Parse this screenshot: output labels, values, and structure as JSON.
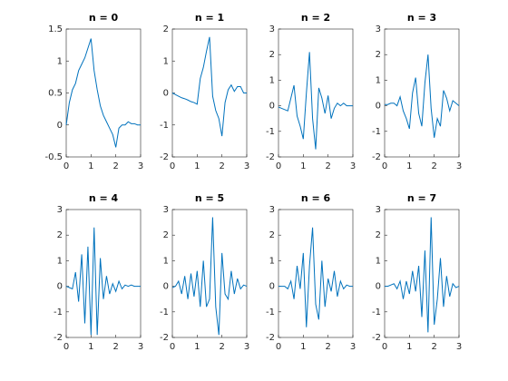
{
  "chart_data": [
    {
      "type": "line",
      "title": "n = 0",
      "color": "#0072bd",
      "xlim": [
        0,
        3
      ],
      "ylim": [
        -0.5,
        1.5
      ],
      "xticks": [
        0,
        1,
        2,
        3
      ],
      "yticks": [
        -0.5,
        0,
        0.5,
        1,
        1.5
      ],
      "x": [
        0,
        0.125,
        0.25,
        0.375,
        0.5,
        0.625,
        0.75,
        0.875,
        1,
        1.125,
        1.25,
        1.375,
        1.5,
        1.625,
        1.75,
        1.875,
        2,
        2.125,
        2.25,
        2.375,
        2.5,
        2.625,
        2.75,
        2.875,
        3
      ],
      "values": [
        0,
        0.35,
        0.55,
        0.65,
        0.85,
        0.95,
        1.05,
        1.2,
        1.35,
        0.85,
        0.55,
        0.3,
        0.15,
        0.05,
        -0.05,
        -0.15,
        -0.35,
        -0.05,
        0,
        0,
        0.05,
        0.02,
        0.02,
        0,
        0
      ]
    },
    {
      "type": "line",
      "title": "n = 1",
      "color": "#0072bd",
      "xlim": [
        0,
        3
      ],
      "ylim": [
        -2,
        2
      ],
      "xticks": [
        0,
        1,
        2,
        3
      ],
      "yticks": [
        -2,
        -1,
        0,
        1,
        2
      ],
      "x": [
        0,
        0.125,
        0.25,
        0.375,
        0.5,
        0.625,
        0.75,
        0.875,
        1,
        1.125,
        1.25,
        1.375,
        1.5,
        1.625,
        1.75,
        1.875,
        2,
        2.125,
        2.25,
        2.375,
        2.5,
        2.625,
        2.75,
        2.875,
        3
      ],
      "values": [
        0,
        -0.05,
        -0.1,
        -0.15,
        -0.18,
        -0.22,
        -0.27,
        -0.3,
        -0.35,
        0.45,
        0.8,
        1.3,
        1.75,
        -0.1,
        -0.55,
        -0.8,
        -1.35,
        -0.3,
        0.1,
        0.25,
        0.05,
        0.2,
        0.2,
        0,
        0
      ]
    },
    {
      "type": "line",
      "title": "n = 2",
      "color": "#0072bd",
      "xlim": [
        0,
        3
      ],
      "ylim": [
        -2,
        3
      ],
      "xticks": [
        0,
        1,
        2,
        3
      ],
      "yticks": [
        -2,
        -1,
        0,
        1,
        2,
        3
      ],
      "x": [
        0,
        0.125,
        0.25,
        0.375,
        0.5,
        0.625,
        0.75,
        0.875,
        1,
        1.125,
        1.25,
        1.375,
        1.5,
        1.625,
        1.75,
        1.875,
        2,
        2.125,
        2.25,
        2.375,
        2.5,
        2.625,
        2.75,
        2.875,
        3
      ],
      "values": [
        -0.05,
        -0.1,
        -0.15,
        -0.2,
        0.3,
        0.8,
        -0.4,
        -0.8,
        -1.3,
        0.5,
        2.1,
        -0.5,
        -1.7,
        0.7,
        0.3,
        -0.3,
        0.4,
        -0.5,
        -0.1,
        0.1,
        0,
        0.1,
        0,
        0,
        0
      ]
    },
    {
      "type": "line",
      "title": "n = 3",
      "color": "#0072bd",
      "xlim": [
        0,
        3
      ],
      "ylim": [
        -2,
        3
      ],
      "xticks": [
        0,
        1,
        2,
        3
      ],
      "yticks": [
        -2,
        -1,
        0,
        1,
        2,
        3
      ],
      "x": [
        0,
        0.125,
        0.25,
        0.375,
        0.5,
        0.625,
        0.75,
        0.875,
        1,
        1.125,
        1.25,
        1.375,
        1.5,
        1.625,
        1.75,
        1.875,
        2,
        2.125,
        2.25,
        2.375,
        2.5,
        2.625,
        2.75,
        2.875,
        3
      ],
      "values": [
        0.05,
        0.05,
        0.1,
        0.1,
        0,
        0.35,
        -0.2,
        -0.5,
        -0.9,
        0.5,
        1.1,
        -0.3,
        -0.8,
        0.9,
        2.0,
        -0.1,
        -1.25,
        -0.5,
        -0.8,
        0.6,
        0.3,
        -0.2,
        0.2,
        0.1,
        0
      ]
    },
    {
      "type": "line",
      "title": "n = 4",
      "color": "#0072bd",
      "xlim": [
        0,
        3
      ],
      "ylim": [
        -2,
        3
      ],
      "xticks": [
        0,
        1,
        2,
        3
      ],
      "yticks": [
        -2,
        -1,
        0,
        1,
        2,
        3
      ],
      "x": [
        0,
        0.125,
        0.25,
        0.375,
        0.5,
        0.625,
        0.75,
        0.875,
        1,
        1.125,
        1.25,
        1.375,
        1.5,
        1.625,
        1.75,
        1.875,
        2,
        2.125,
        2.25,
        2.375,
        2.5,
        2.625,
        2.75,
        2.875,
        3
      ],
      "values": [
        0,
        -0.05,
        -0.1,
        0.55,
        -0.6,
        1.25,
        -1.45,
        1.55,
        -1.9,
        2.3,
        -1.9,
        1.1,
        -0.5,
        0.4,
        -0.3,
        0.1,
        -0.2,
        0.2,
        -0.1,
        0.05,
        0,
        0.05,
        0,
        0,
        0
      ]
    },
    {
      "type": "line",
      "title": "n = 5",
      "color": "#0072bd",
      "xlim": [
        0,
        3
      ],
      "ylim": [
        -2,
        3
      ],
      "xticks": [
        0,
        1,
        2,
        3
      ],
      "yticks": [
        -2,
        -1,
        0,
        1,
        2,
        3
      ],
      "x": [
        0,
        0.125,
        0.25,
        0.375,
        0.5,
        0.625,
        0.75,
        0.875,
        1,
        1.125,
        1.25,
        1.375,
        1.5,
        1.625,
        1.75,
        1.875,
        2,
        2.125,
        2.25,
        2.375,
        2.5,
        2.625,
        2.75,
        2.875,
        3
      ],
      "values": [
        -0.05,
        0,
        0.2,
        -0.3,
        0.4,
        -0.5,
        0.5,
        -0.4,
        0.6,
        -0.8,
        1.0,
        -0.8,
        -0.5,
        2.7,
        -0.8,
        -1.9,
        1.3,
        -0.3,
        -0.5,
        0.6,
        -0.3,
        0.3,
        -0.1,
        0.05,
        0
      ]
    },
    {
      "type": "line",
      "title": "n = 6",
      "color": "#0072bd",
      "xlim": [
        0,
        3
      ],
      "ylim": [
        -2,
        3
      ],
      "xticks": [
        0,
        1,
        2,
        3
      ],
      "yticks": [
        -2,
        -1,
        0,
        1,
        2,
        3
      ],
      "x": [
        0,
        0.125,
        0.25,
        0.375,
        0.5,
        0.625,
        0.75,
        0.875,
        1,
        1.125,
        1.25,
        1.375,
        1.5,
        1.625,
        1.75,
        1.875,
        2,
        2.125,
        2.25,
        2.375,
        2.5,
        2.625,
        2.75,
        2.875,
        3
      ],
      "values": [
        0,
        0,
        0,
        -0.1,
        0.2,
        -0.5,
        0.8,
        -0.1,
        1.3,
        -1.6,
        0.8,
        2.3,
        -0.7,
        -1.3,
        1.0,
        -0.8,
        0.3,
        -0.2,
        0.6,
        -0.4,
        0.2,
        -0.1,
        0.05,
        0,
        0
      ]
    },
    {
      "type": "line",
      "title": "n = 7",
      "color": "#0072bd",
      "xlim": [
        0,
        3
      ],
      "ylim": [
        -2,
        3
      ],
      "xticks": [
        0,
        1,
        2,
        3
      ],
      "yticks": [
        -2,
        -1,
        0,
        1,
        2,
        3
      ],
      "x": [
        0,
        0.125,
        0.25,
        0.375,
        0.5,
        0.625,
        0.75,
        0.875,
        1,
        1.125,
        1.25,
        1.375,
        1.5,
        1.625,
        1.75,
        1.875,
        2,
        2.125,
        2.25,
        2.375,
        2.5,
        2.625,
        2.75,
        2.875,
        3
      ],
      "values": [
        0,
        0,
        0.05,
        0.1,
        -0.1,
        0.2,
        -0.5,
        0.2,
        -0.3,
        0.6,
        -0.2,
        0.8,
        -1.2,
        1.4,
        -1.8,
        2.7,
        -1.5,
        -0.5,
        1.1,
        -0.8,
        0.4,
        -0.4,
        0.1,
        -0.05,
        0
      ]
    }
  ]
}
